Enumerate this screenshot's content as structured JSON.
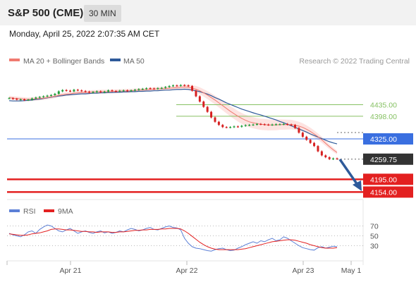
{
  "header": {
    "title": "S&P 500 (CME)",
    "timeframe": "30 MIN",
    "timestamp": "Monday, April 25, 2022 2:07:35 AM CET"
  },
  "legend": {
    "ma20": "MA 20 + Bollinger Bands",
    "ma50": "MA 50",
    "credit": "Research © 2022 Trading Central",
    "rsi": "RSI",
    "ma9": "9MA"
  },
  "colors": {
    "ma20": "#f07a70",
    "ma50": "#2e5a9a",
    "band": "#fde3e1",
    "resistance": "#86c163",
    "pivot": "#3a6fe0",
    "support": "#e32020",
    "current": "#333333",
    "rsi": "#5b7fd6",
    "ma9": "#e32020",
    "up": "#1f9e3a",
    "down": "#d62020"
  },
  "chart_data": [
    {
      "type": "candlestick",
      "title": "S&P 500 (CME)",
      "x_ticks": [
        "Apr 21",
        "Apr 22",
        "Apr 23",
        "May 1"
      ],
      "ylim": [
        4130,
        4545
      ],
      "levels": [
        {
          "label": "4435.00",
          "value": 4435,
          "kind": "resistance"
        },
        {
          "label": "4398.00",
          "value": 4398,
          "kind": "resistance"
        },
        {
          "label": "4325.00",
          "value": 4325,
          "kind": "pivot"
        },
        {
          "label": "4259.75",
          "value": 4259.75,
          "kind": "current"
        },
        {
          "label": "4195.00",
          "value": 4195,
          "kind": "support"
        },
        {
          "label": "4154.00",
          "value": 4154,
          "kind": "support"
        }
      ],
      "series": [
        {
          "name": "Price",
          "values": [
            4456,
            4454,
            4452,
            4452,
            4450,
            4451,
            4455,
            4458,
            4460,
            4462,
            4464,
            4466,
            4470,
            4478,
            4482,
            4480,
            4478,
            4483,
            4481,
            4479,
            4477,
            4474,
            4476,
            4478,
            4475,
            4477,
            4481,
            4479,
            4478,
            4480,
            4481,
            4479,
            4481,
            4483,
            4485,
            4486,
            4488,
            4487,
            4486,
            4488,
            4489,
            4492,
            4495,
            4497,
            4496,
            4498,
            4497,
            4495,
            4480,
            4462,
            4445,
            4428,
            4412,
            4394,
            4380,
            4370,
            4363,
            4362,
            4363,
            4365,
            4364,
            4367,
            4369,
            4370,
            4371,
            4373,
            4372,
            4371,
            4370,
            4371,
            4372,
            4372,
            4373,
            4371,
            4370,
            4360,
            4345,
            4332,
            4322,
            4312,
            4302,
            4285,
            4272,
            4266,
            4260,
            4262,
            4261
          ]
        },
        {
          "name": "MA 20",
          "values": [
            4458,
            4456,
            4455,
            4454,
            4453,
            4452,
            4453,
            4454,
            4455,
            4456,
            4458,
            4460,
            4462,
            4465,
            4467,
            4469,
            4470,
            4472,
            4473,
            4474,
            4474,
            4475,
            4476,
            4476,
            4477,
            4477,
            4477,
            4478,
            4478,
            4479,
            4479,
            4480,
            4480,
            4481,
            4482,
            4482,
            4483,
            4484,
            4485,
            4486,
            4486,
            4487,
            4488,
            4489,
            4490,
            4491,
            4492,
            4491,
            4488,
            4485,
            4480,
            4473,
            4466,
            4458,
            4450,
            4441,
            4432,
            4423,
            4414,
            4406,
            4398,
            4391,
            4385,
            4380,
            4377,
            4374,
            4372,
            4371,
            4370,
            4370,
            4370,
            4371,
            4371,
            4371,
            4371,
            4369,
            4366,
            4362,
            4356,
            4349,
            4341,
            4332,
            4322,
            4311,
            4300,
            4290,
            4281
          ]
        },
        {
          "name": "MA 50",
          "values": [
            4448,
            4447,
            4447,
            4447,
            4448,
            4449,
            4450,
            4452,
            4453,
            4455,
            4457,
            4459,
            4461,
            4463,
            4464,
            4466,
            4467,
            4468,
            4469,
            4470,
            4470,
            4471,
            4472,
            4472,
            4473,
            4473,
            4474,
            4474,
            4475,
            4475,
            4476,
            4476,
            4477,
            4477,
            4478,
            4478,
            4479,
            4479,
            4480,
            4480,
            4481,
            4482,
            4482,
            4483,
            4484,
            4484,
            4485,
            4484,
            4482,
            4480,
            4477,
            4473,
            4469,
            4464,
            4458,
            4453,
            4447,
            4441,
            4436,
            4431,
            4426,
            4421,
            4417,
            4413,
            4409,
            4405,
            4402,
            4398,
            4394,
            4390,
            4386,
            4381,
            4377,
            4372,
            4367,
            4362,
            4357,
            4352,
            4347,
            4341,
            4336,
            4331,
            4326,
            4321,
            4316,
            4312,
            4309
          ]
        }
      ]
    },
    {
      "type": "line",
      "title": "RSI",
      "y_ticks": [
        "70",
        "50",
        "30"
      ],
      "ylim": [
        5,
        85
      ],
      "series": [
        {
          "name": "RSI",
          "values": [
            55,
            52,
            50,
            48,
            52,
            58,
            60,
            55,
            63,
            68,
            72,
            70,
            65,
            60,
            58,
            62,
            65,
            60,
            55,
            58,
            60,
            57,
            55,
            58,
            60,
            56,
            58,
            55,
            57,
            60,
            58,
            62,
            65,
            63,
            60,
            62,
            65,
            67,
            63,
            62,
            65,
            68,
            70,
            67,
            66,
            62,
            45,
            35,
            28,
            25,
            24,
            22,
            20,
            19,
            22,
            24,
            25,
            22,
            20,
            21,
            25,
            28,
            32,
            35,
            38,
            35,
            40,
            38,
            42,
            45,
            40,
            42,
            48,
            45,
            40,
            35,
            30,
            26,
            24,
            22,
            21,
            26,
            28,
            25,
            27,
            29,
            28
          ]
        },
        {
          "name": "9MA",
          "values": [
            54,
            53,
            52,
            51,
            51,
            52,
            54,
            55,
            56,
            58,
            60,
            63,
            64,
            64,
            63,
            62,
            62,
            61,
            60,
            59,
            59,
            58,
            58,
            57,
            58,
            58,
            58,
            57,
            57,
            58,
            58,
            59,
            60,
            61,
            61,
            62,
            62,
            63,
            63,
            63,
            64,
            64,
            65,
            65,
            65,
            64,
            60,
            55,
            49,
            43,
            37,
            32,
            28,
            25,
            23,
            22,
            22,
            22,
            22,
            22,
            22,
            23,
            24,
            26,
            28,
            30,
            32,
            34,
            36,
            38,
            39,
            40,
            41,
            42,
            42,
            41,
            39,
            37,
            35,
            32,
            30,
            28,
            26,
            25,
            25,
            25,
            26
          ]
        }
      ]
    }
  ]
}
